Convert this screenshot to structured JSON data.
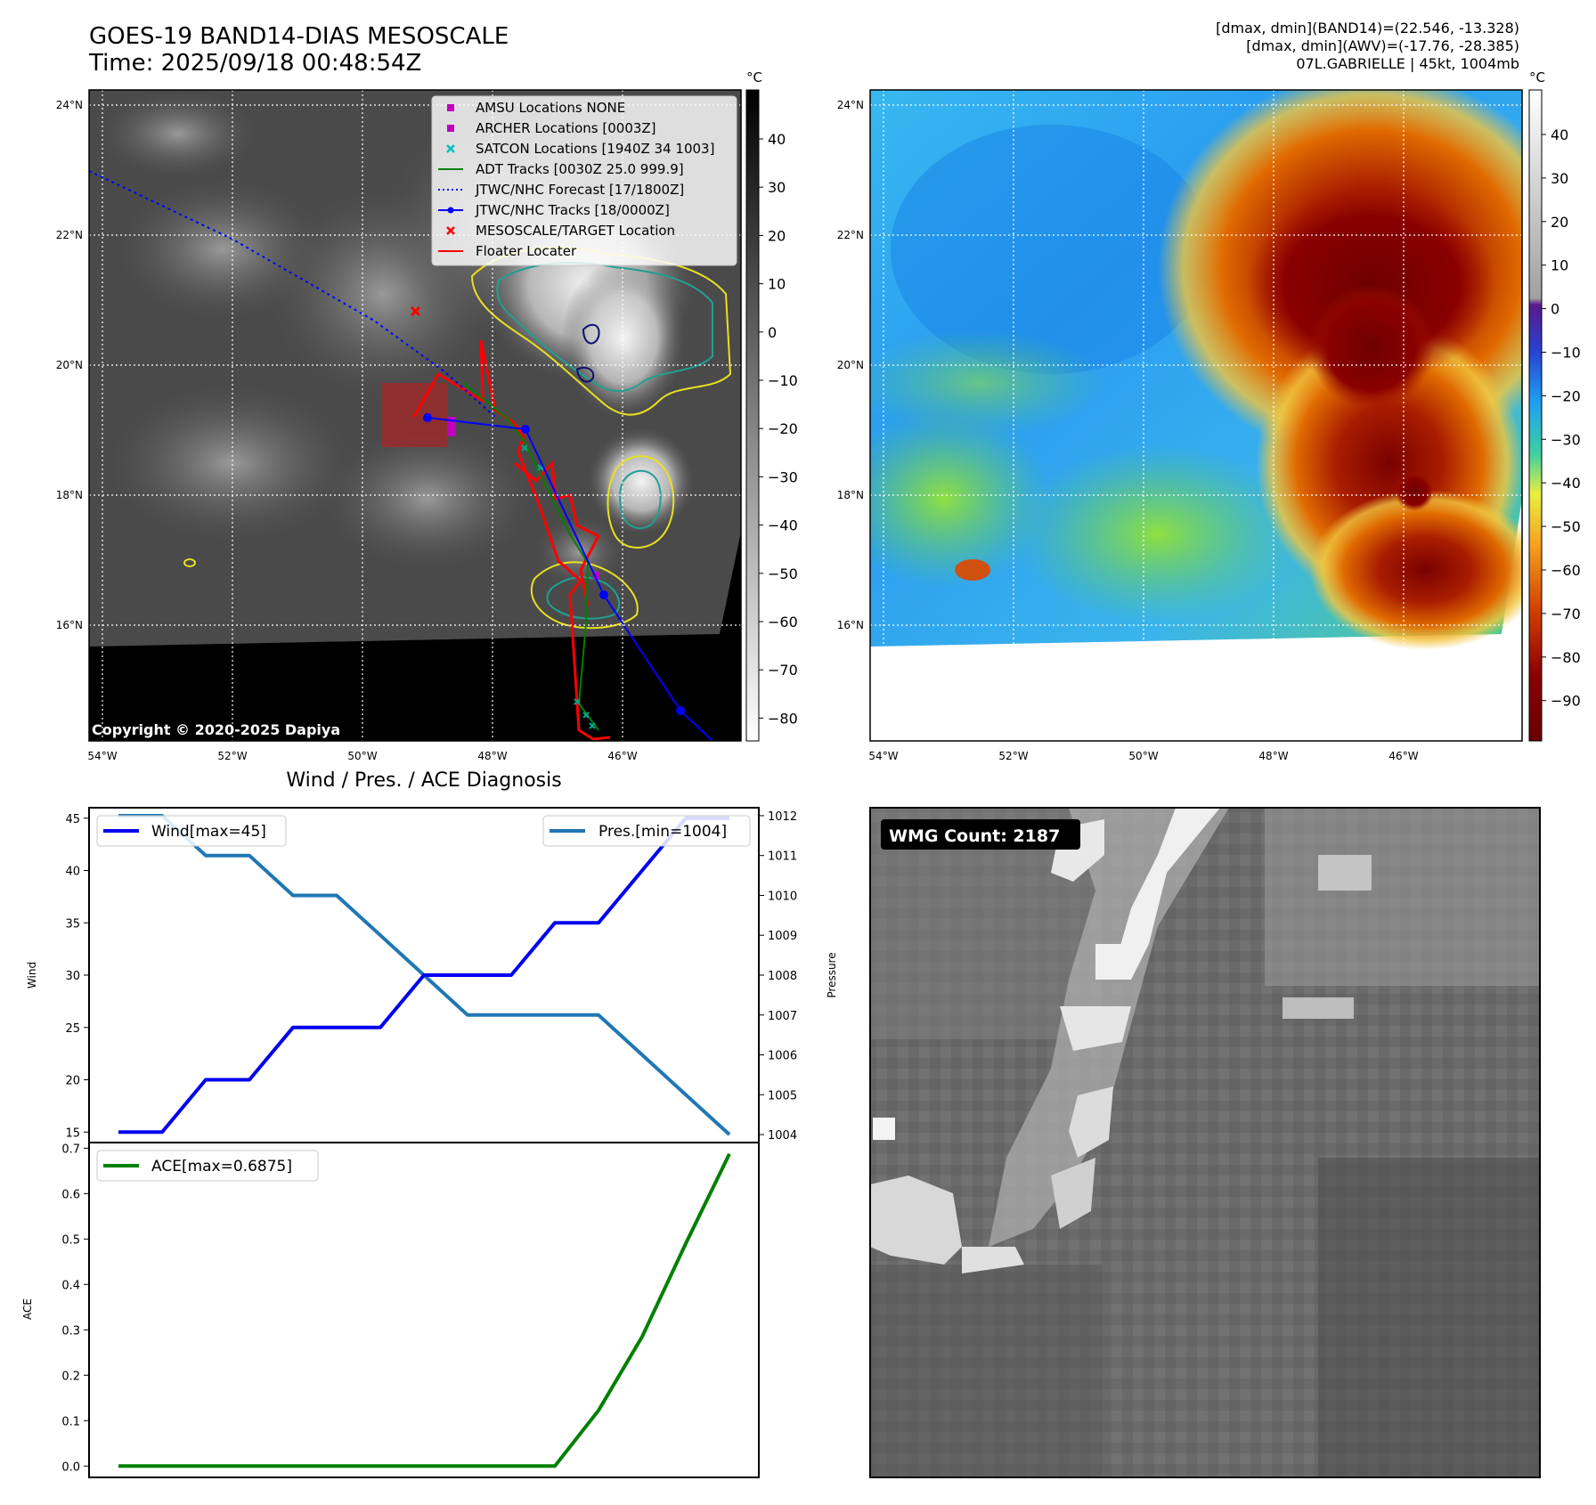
{
  "header": {
    "title_line1": "GOES-19 BAND14-DIAS MESOSCALE",
    "title_line2": "Time: 2025/09/18 00:48:54Z",
    "stats_line1": "[dmax, dmin](BAND14)=(22.546, -13.328)",
    "stats_line2": "[dmax, dmin](AWV)=(-17.76, -28.385)",
    "stats_line3": "07L.GABRIELLE | 45kt, 1004mb"
  },
  "map_ir": {
    "lat_labels": [
      "24°N",
      "22°N",
      "20°N",
      "18°N",
      "16°N"
    ],
    "lon_labels": [
      "54°W",
      "52°W",
      "50°W",
      "48°W",
      "46°W"
    ],
    "copyright": "Copyright © 2020-2025 Dapiya",
    "colorbar_unit": "°C",
    "colorbar_ticks": [
      "40",
      "30",
      "20",
      "10",
      "0",
      "−10",
      "−20",
      "−30",
      "−40",
      "−50",
      "−60",
      "−70",
      "−80"
    ],
    "legend": [
      {
        "label": "AMSU Locations NONE",
        "color": "#bf00bf",
        "icon": "square-marker-icon"
      },
      {
        "label": "ARCHER Locations [0003Z]",
        "color": "#bf00bf",
        "icon": "square-marker-icon"
      },
      {
        "label": "SATCON Locations [1940Z 34 1003]",
        "color": "#00bfbf",
        "icon": "x-marker-icon"
      },
      {
        "label": "ADT Tracks [0030Z 25.0 999.9]",
        "color": "#008000",
        "icon": "solid-line-icon"
      },
      {
        "label": "JTWC/NHC Forecast [17/1800Z]",
        "color": "#0000ff",
        "icon": "dotted-line-icon"
      },
      {
        "label": "JTWC/NHC Tracks [18/0000Z]",
        "color": "#0000ff",
        "icon": "line-dot-icon"
      },
      {
        "label": "MESOSCALE/TARGET Location",
        "color": "#ff0000",
        "icon": "x-marker-icon"
      },
      {
        "label": "Floater Locater",
        "color": "#ff0000",
        "icon": "solid-line-icon"
      }
    ]
  },
  "map_awv": {
    "lat_labels": [
      "24°N",
      "22°N",
      "20°N",
      "18°N",
      "16°N"
    ],
    "lon_labels": [
      "54°W",
      "52°W",
      "50°W",
      "48°W",
      "46°W"
    ],
    "colorbar_unit": "°C",
    "colorbar_ticks": [
      "40",
      "30",
      "20",
      "10",
      "0",
      "−10",
      "−20",
      "−30",
      "−40",
      "−50",
      "−60",
      "−70",
      "−80",
      "−90"
    ]
  },
  "diagnosis": {
    "title": "Wind / Pres. / ACE Diagnosis",
    "wind_axis_label": "Wind",
    "pres_axis_label": "Pressure",
    "ace_axis_label": "ACE"
  },
  "wmg": {
    "label": "WMG Count: 2187"
  },
  "chart_data": [
    {
      "type": "line",
      "panel": "wind-pressure",
      "x": [
        0,
        1,
        2,
        3,
        4,
        5,
        6,
        7,
        8,
        9,
        10,
        11,
        12,
        13,
        14
      ],
      "series": [
        {
          "name": "Wind[max=45]",
          "color": "#0000ee",
          "axis": "left",
          "values": [
            15,
            15,
            20,
            20,
            25,
            25,
            25,
            30,
            30,
            30,
            35,
            35,
            40,
            45,
            45
          ]
        },
        {
          "name": "Pres.[min=1004]",
          "color": "#1f77b4",
          "axis": "right",
          "values": [
            1012,
            1012,
            1011,
            1011,
            1010,
            1010,
            1009,
            1008,
            1007,
            1007,
            1007,
            1007,
            1006,
            1005,
            1004
          ]
        }
      ],
      "ylim": [
        14,
        46
      ],
      "y2lim": [
        1003.8,
        1012.2
      ],
      "yticks": [
        15,
        20,
        25,
        30,
        35,
        40,
        45
      ],
      "y2ticks": [
        1004,
        1005,
        1006,
        1007,
        1008,
        1009,
        1010,
        1011,
        1012
      ],
      "ylabel": "Wind",
      "y2label": "Pressure",
      "legend": [
        "top-left",
        "top-right"
      ]
    },
    {
      "type": "line",
      "panel": "ace",
      "x": [
        0,
        1,
        2,
        3,
        4,
        5,
        6,
        7,
        8,
        9,
        10,
        11,
        12,
        13,
        14
      ],
      "series": [
        {
          "name": "ACE[max=0.6875]",
          "color": "#008000",
          "values": [
            0,
            0,
            0,
            0,
            0,
            0,
            0,
            0,
            0,
            0,
            0,
            0.1225,
            0.285,
            0.49,
            0.6875
          ]
        }
      ],
      "ylim": [
        -0.025,
        0.7125
      ],
      "yticks": [
        0.0,
        0.1,
        0.2,
        0.3,
        0.4,
        0.5,
        0.6,
        0.7
      ],
      "ylabel": "ACE",
      "legend": "top-left"
    }
  ]
}
